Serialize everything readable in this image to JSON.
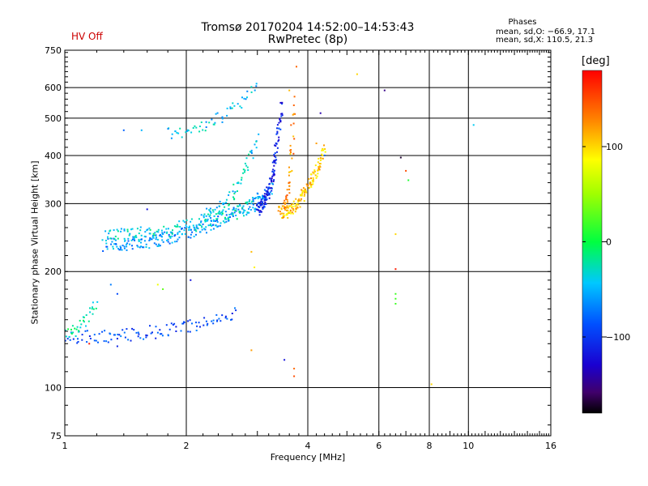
{
  "header": {
    "title_line1": "Tromsø 20170204 14:52:00–14:53:43",
    "title_line2": "RwPretec (8p)",
    "hv_status": "HV Off",
    "phase_heading": "Phases",
    "phase_o": "mean, sd,O: −66.9, 17.1",
    "phase_x": "mean, sd,X: 110.5, 21.3"
  },
  "colorbar": {
    "unit_label": "[deg]",
    "ticks": [
      {
        "value": 100,
        "label": "100"
      },
      {
        "value": 0,
        "label": "0"
      },
      {
        "value": -100,
        "label": "−100"
      }
    ],
    "range": [
      -180,
      180
    ]
  },
  "chart_data": {
    "type": "scatter",
    "title": "Tromsø 20170204 14:52:00–14:53:43",
    "subtitle": "RwPretec (8p)",
    "xlabel": "Frequency [MHz]",
    "ylabel": "Stationary phase Virtual Height [km]",
    "xscale": "log2",
    "yscale": "log",
    "xlim": [
      1,
      16
    ],
    "ylim": [
      75,
      750
    ],
    "x_ticks": [
      {
        "value": 1,
        "label": "1"
      },
      {
        "value": 2,
        "label": "2"
      },
      {
        "value": 4,
        "label": "4"
      },
      {
        "value": 6,
        "label": "6"
      },
      {
        "value": 8,
        "label": "8"
      },
      {
        "value": 10,
        "label": "10"
      },
      {
        "value": 16,
        "label": "16"
      }
    ],
    "y_ticks": [
      {
        "value": 75,
        "label": "75"
      },
      {
        "value": 100,
        "label": "100"
      },
      {
        "value": 200,
        "label": "200"
      },
      {
        "value": 300,
        "label": "300"
      },
      {
        "value": 400,
        "label": "400"
      },
      {
        "value": 500,
        "label": "500"
      },
      {
        "value": 600,
        "label": "600"
      },
      {
        "value": 750,
        "label": "750"
      }
    ],
    "x_grid": [
      2,
      4,
      6,
      8,
      10
    ],
    "y_grid": [
      100,
      200,
      300,
      400,
      500,
      600
    ],
    "phase_range_deg": [
      -180,
      180
    ],
    "trace_segments": [
      {
        "name": "o-mode F2 trace",
        "x_start": 1.25,
        "x_end": 3.3,
        "y_start": 235,
        "y_end": 330,
        "phase": -60,
        "count": 230
      },
      {
        "name": "o-mode F2 upper trace",
        "x_start": 1.27,
        "x_end": 3.0,
        "y_start": 250,
        "y_end": 300,
        "phase": -35,
        "count": 140
      },
      {
        "name": "o-mode cusp",
        "x_start": 3.0,
        "x_end": 3.45,
        "y_start": 290,
        "y_end": 540,
        "phase": -110,
        "count": 130
      },
      {
        "name": "x-mode F2 trace",
        "x_start": 3.4,
        "x_end": 4.4,
        "y_start": 285,
        "y_end": 420,
        "phase": 105,
        "count": 150
      },
      {
        "name": "x-mode cusp",
        "x_start": 3.5,
        "x_end": 3.7,
        "y_start": 300,
        "y_end": 560,
        "phase": 125,
        "count": 45
      },
      {
        "name": "E-region trace",
        "x_start": 1.0,
        "x_end": 2.65,
        "y_start": 135,
        "y_end": 155,
        "phase": -90,
        "count": 110
      },
      {
        "name": "low E echoes",
        "x_start": 1.0,
        "x_end": 1.2,
        "y_start": 140,
        "y_end": 165,
        "phase": -20,
        "count": 35
      },
      {
        "name": "upper scatter",
        "x_start": 1.8,
        "x_end": 3.0,
        "y_start": 460,
        "y_end": 610,
        "phase": -45,
        "count": 55
      },
      {
        "name": "spread echoes",
        "x_start": 2.2,
        "x_end": 3.0,
        "y_start": 280,
        "y_end": 450,
        "phase": -40,
        "count": 70
      }
    ],
    "points": [
      {
        "x": 1.4,
        "y": 465,
        "phase": -80
      },
      {
        "x": 1.55,
        "y": 465,
        "phase": -50
      },
      {
        "x": 1.6,
        "y": 290,
        "phase": -120
      },
      {
        "x": 1.3,
        "y": 185,
        "phase": -70
      },
      {
        "x": 1.35,
        "y": 175,
        "phase": -90
      },
      {
        "x": 1.7,
        "y": 185,
        "phase": 80
      },
      {
        "x": 1.75,
        "y": 180,
        "phase": 30
      },
      {
        "x": 2.05,
        "y": 190,
        "phase": -120
      },
      {
        "x": 1.15,
        "y": 130,
        "phase": 170
      },
      {
        "x": 1.35,
        "y": 128,
        "phase": -110
      },
      {
        "x": 2.95,
        "y": 205,
        "phase": 90
      },
      {
        "x": 2.9,
        "y": 225,
        "phase": 110
      },
      {
        "x": 2.9,
        "y": 125,
        "phase": 120
      },
      {
        "x": 3.5,
        "y": 118,
        "phase": -120
      },
      {
        "x": 3.7,
        "y": 112,
        "phase": 140
      },
      {
        "x": 3.7,
        "y": 107,
        "phase": 150
      },
      {
        "x": 3.6,
        "y": 590,
        "phase": 110
      },
      {
        "x": 3.75,
        "y": 680,
        "phase": 140
      },
      {
        "x": 5.3,
        "y": 650,
        "phase": 100
      },
      {
        "x": 4.3,
        "y": 515,
        "phase": -140
      },
      {
        "x": 6.2,
        "y": 590,
        "phase": -150
      },
      {
        "x": 6.8,
        "y": 395,
        "phase": -170
      },
      {
        "x": 7.0,
        "y": 365,
        "phase": 150
      },
      {
        "x": 7.1,
        "y": 345,
        "phase": 10
      },
      {
        "x": 6.6,
        "y": 250,
        "phase": 100
      },
      {
        "x": 6.6,
        "y": 203,
        "phase": 170
      },
      {
        "x": 6.6,
        "y": 175,
        "phase": 20
      },
      {
        "x": 6.6,
        "y": 170,
        "phase": 20
      },
      {
        "x": 6.6,
        "y": 165,
        "phase": 20
      },
      {
        "x": 8.1,
        "y": 102,
        "phase": 100
      },
      {
        "x": 10.3,
        "y": 480,
        "phase": -40
      },
      {
        "x": 4.4,
        "y": 400,
        "phase": -80
      },
      {
        "x": 4.2,
        "y": 430,
        "phase": 120
      }
    ]
  }
}
